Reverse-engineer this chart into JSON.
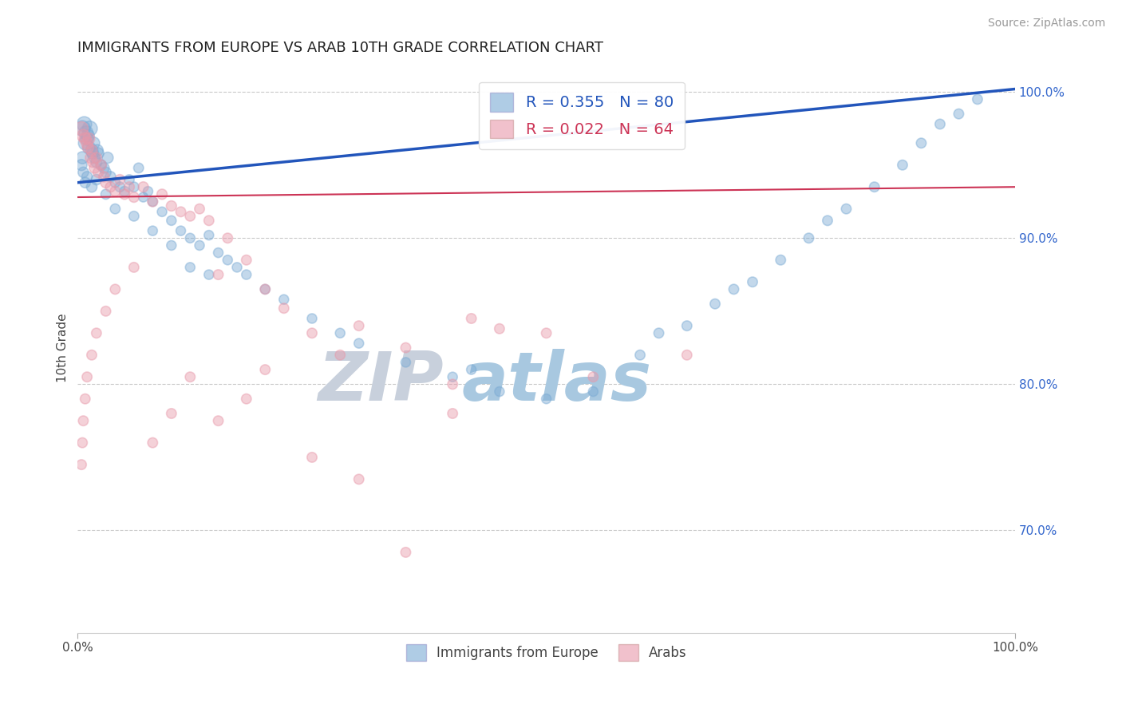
{
  "title": "IMMIGRANTS FROM EUROPE VS ARAB 10TH GRADE CORRELATION CHART",
  "source_text": "Source: ZipAtlas.com",
  "ylabel": "10th Grade",
  "right_yticks": [
    70.0,
    80.0,
    90.0,
    100.0
  ],
  "xmin": 0.0,
  "xmax": 100.0,
  "ymin": 63.0,
  "ymax": 102.0,
  "legend_blue_r": "R = 0.355",
  "legend_blue_n": "N = 80",
  "legend_pink_r": "R = 0.022",
  "legend_pink_n": "N = 64",
  "legend_label_blue": "Immigrants from Europe",
  "legend_label_pink": "Arabs",
  "blue_color": "#7aaad4",
  "pink_color": "#e899aa",
  "trendline_blue_color": "#2255bb",
  "trendline_pink_color": "#cc3355",
  "watermark_zip_color": "#c8d0dc",
  "watermark_atlas_color": "#a8c8e0",
  "grid_yticks_pct": [
    70.0,
    80.0,
    90.0,
    100.0
  ],
  "trendline_blue_y0": 93.8,
  "trendline_blue_y1": 100.2,
  "trendline_pink_y0": 92.8,
  "trendline_pink_y1": 93.5,
  "blue_x": [
    0.5,
    0.7,
    0.8,
    0.9,
    1.0,
    1.1,
    1.2,
    1.3,
    1.5,
    1.6,
    1.7,
    1.8,
    2.0,
    2.1,
    2.2,
    2.5,
    2.8,
    3.0,
    3.2,
    3.5,
    4.0,
    4.5,
    5.0,
    5.5,
    6.0,
    6.5,
    7.0,
    7.5,
    8.0,
    9.0,
    10.0,
    11.0,
    12.0,
    13.0,
    14.0,
    15.0,
    16.0,
    17.0,
    18.0,
    20.0,
    22.0,
    25.0,
    28.0,
    30.0,
    35.0,
    40.0,
    42.0,
    45.0,
    50.0,
    55.0,
    60.0,
    62.0,
    65.0,
    68.0,
    70.0,
    72.0,
    75.0,
    78.0,
    80.0,
    82.0,
    85.0,
    88.0,
    90.0,
    92.0,
    94.0,
    96.0,
    10.0,
    12.0,
    14.0,
    8.0,
    6.0,
    4.0,
    3.0,
    2.0,
    1.5,
    1.0,
    0.8,
    0.6,
    0.5,
    0.4
  ],
  "blue_y": [
    97.5,
    97.8,
    96.5,
    97.2,
    96.8,
    97.0,
    96.2,
    97.5,
    96.0,
    95.8,
    96.5,
    95.5,
    95.2,
    96.0,
    95.8,
    95.0,
    94.8,
    94.5,
    95.5,
    94.2,
    93.8,
    93.5,
    93.2,
    94.0,
    93.5,
    94.8,
    92.8,
    93.2,
    92.5,
    91.8,
    91.2,
    90.5,
    90.0,
    89.5,
    90.2,
    89.0,
    88.5,
    88.0,
    87.5,
    86.5,
    85.8,
    84.5,
    83.5,
    82.8,
    81.5,
    80.5,
    81.0,
    79.5,
    79.0,
    79.5,
    82.0,
    83.5,
    84.0,
    85.5,
    86.5,
    87.0,
    88.5,
    90.0,
    91.2,
    92.0,
    93.5,
    95.0,
    96.5,
    97.8,
    98.5,
    99.5,
    89.5,
    88.0,
    87.5,
    90.5,
    91.5,
    92.0,
    93.0,
    94.0,
    93.5,
    94.2,
    93.8,
    94.5,
    95.5,
    95.0
  ],
  "blue_sizes": [
    200,
    180,
    150,
    160,
    140,
    130,
    130,
    180,
    120,
    110,
    120,
    100,
    100,
    110,
    100,
    90,
    90,
    90,
    100,
    90,
    80,
    80,
    80,
    80,
    80,
    80,
    75,
    75,
    75,
    75,
    75,
    75,
    75,
    75,
    75,
    75,
    75,
    75,
    75,
    75,
    75,
    75,
    75,
    75,
    75,
    75,
    75,
    75,
    75,
    75,
    80,
    80,
    80,
    80,
    80,
    80,
    80,
    80,
    80,
    80,
    80,
    80,
    80,
    80,
    80,
    80,
    75,
    75,
    75,
    75,
    80,
    80,
    80,
    90,
    90,
    90,
    90,
    90,
    120,
    100
  ],
  "pink_x": [
    0.4,
    0.6,
    0.8,
    1.0,
    1.1,
    1.2,
    1.4,
    1.5,
    1.6,
    1.8,
    2.0,
    2.2,
    2.5,
    2.8,
    3.0,
    3.5,
    4.0,
    4.5,
    5.0,
    5.5,
    6.0,
    7.0,
    8.0,
    9.0,
    10.0,
    11.0,
    12.0,
    13.0,
    14.0,
    15.0,
    16.0,
    18.0,
    20.0,
    22.0,
    25.0,
    28.0,
    30.0,
    35.0,
    40.0,
    42.0,
    45.0,
    50.0,
    15.0,
    18.0,
    20.0,
    12.0,
    10.0,
    8.0,
    6.0,
    4.0,
    3.0,
    2.0,
    1.5,
    1.0,
    0.8,
    0.6,
    0.5,
    0.4,
    25.0,
    30.0,
    35.0,
    40.0,
    55.0,
    65.0
  ],
  "pink_y": [
    97.5,
    97.0,
    96.8,
    96.5,
    96.2,
    96.8,
    95.5,
    96.0,
    95.2,
    94.8,
    95.5,
    94.5,
    95.0,
    94.2,
    93.8,
    93.5,
    93.2,
    94.0,
    93.0,
    93.5,
    92.8,
    93.5,
    92.5,
    93.0,
    92.2,
    91.8,
    91.5,
    92.0,
    91.2,
    87.5,
    90.0,
    88.5,
    86.5,
    85.2,
    83.5,
    82.0,
    84.0,
    82.5,
    80.0,
    84.5,
    83.8,
    83.5,
    77.5,
    79.0,
    81.0,
    80.5,
    78.0,
    76.0,
    88.0,
    86.5,
    85.0,
    83.5,
    82.0,
    80.5,
    79.0,
    77.5,
    76.0,
    74.5,
    75.0,
    73.5,
    68.5,
    78.0,
    80.5,
    82.0
  ],
  "pink_sizes": [
    150,
    130,
    120,
    110,
    100,
    110,
    100,
    100,
    90,
    90,
    90,
    90,
    90,
    90,
    90,
    85,
    85,
    85,
    85,
    85,
    85,
    85,
    85,
    85,
    85,
    80,
    80,
    80,
    80,
    80,
    80,
    80,
    80,
    80,
    80,
    80,
    80,
    80,
    80,
    80,
    80,
    80,
    80,
    80,
    80,
    80,
    80,
    80,
    80,
    80,
    80,
    80,
    80,
    80,
    80,
    80,
    80,
    80,
    80,
    80,
    80,
    80,
    80,
    80
  ]
}
